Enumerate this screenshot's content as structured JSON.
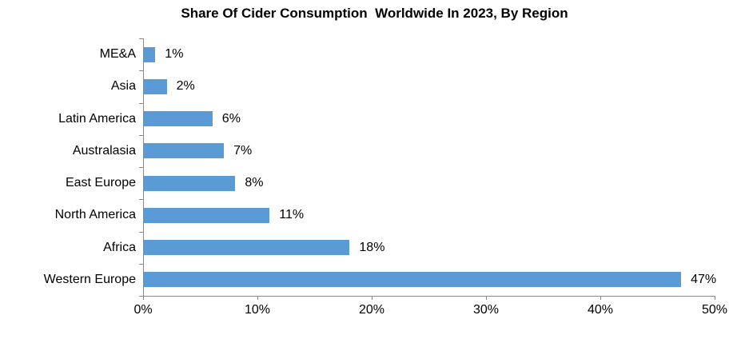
{
  "chart_data": {
    "type": "bar",
    "orientation": "horizontal",
    "title": "Share Of Cider Consumption  Worldwide In 2023, By Region",
    "categories": [
      "ME&A",
      "Asia",
      "Latin America",
      "Australasia",
      "East Europe",
      "North America",
      "Africa",
      "Western Europe"
    ],
    "values": [
      1,
      2,
      6,
      7,
      8,
      11,
      18,
      47
    ],
    "data_labels": [
      "1%",
      "2%",
      "6%",
      "7%",
      "8%",
      "11%",
      "18%",
      "47%"
    ],
    "x_ticks": [
      0,
      10,
      20,
      30,
      40,
      50
    ],
    "x_tick_labels": [
      "0%",
      "10%",
      "20%",
      "30%",
      "40%",
      "50%"
    ],
    "xlim": [
      0,
      50
    ],
    "xlabel": "",
    "ylabel": "",
    "grid": false,
    "legend": false,
    "bar_color": "#5B9BD5",
    "axis_color": "#898989",
    "text_color": "#000000",
    "background_color": "#FFFFFF"
  }
}
